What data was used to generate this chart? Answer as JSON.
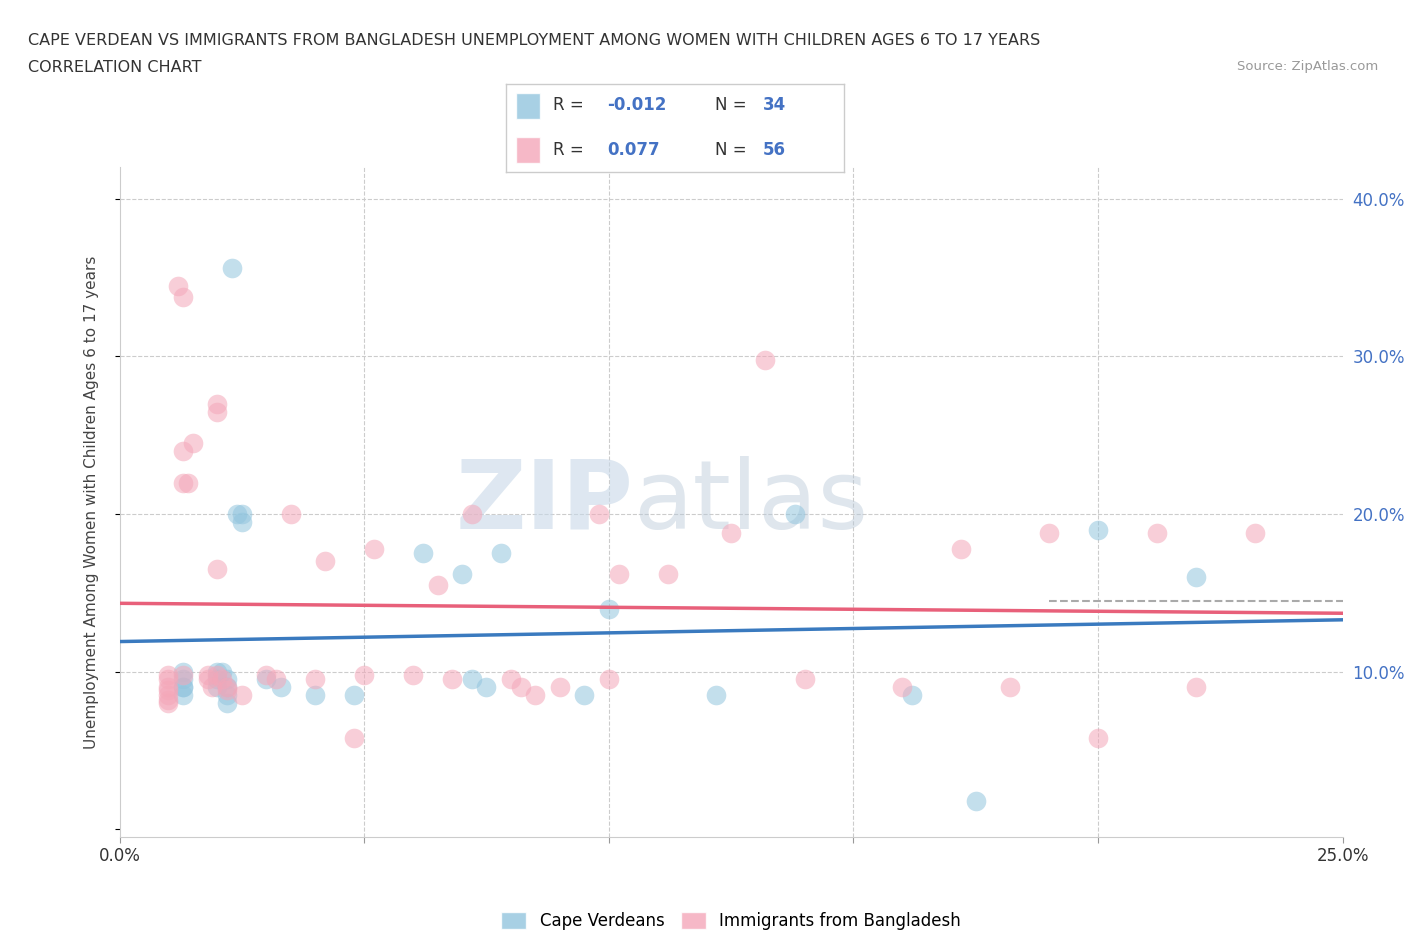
{
  "title_line1": "CAPE VERDEAN VS IMMIGRANTS FROM BANGLADESH UNEMPLOYMENT AMONG WOMEN WITH CHILDREN AGES 6 TO 17 YEARS",
  "title_line2": "CORRELATION CHART",
  "source_text": "Source: ZipAtlas.com",
  "ylabel": "Unemployment Among Women with Children Ages 6 to 17 years",
  "watermark_top": "ZIP",
  "watermark_bot": "atlas",
  "xlim": [
    0.0,
    0.25
  ],
  "ylim": [
    -0.005,
    0.42
  ],
  "blue_color": "#92c5de",
  "pink_color": "#f4a7b9",
  "blue_line_color": "#3a7abf",
  "pink_line_color": "#e8607a",
  "dashed_line_color": "#aaaaaa",
  "tick_color": "#4472c4",
  "grid_color": "#cccccc",
  "R_blue": "-0.012",
  "N_blue": "34",
  "R_pink": "0.077",
  "N_pink": "56",
  "legend_label_blue": "Cape Verdeans",
  "legend_label_pink": "Immigrants from Bangladesh",
  "blue_x": [
    0.013,
    0.013,
    0.013,
    0.013,
    0.013,
    0.02,
    0.02,
    0.02,
    0.021,
    0.022,
    0.022,
    0.022,
    0.022,
    0.023,
    0.024,
    0.025,
    0.025,
    0.03,
    0.033,
    0.04,
    0.048,
    0.062,
    0.07,
    0.072,
    0.075,
    0.078,
    0.095,
    0.1,
    0.122,
    0.138,
    0.162,
    0.175,
    0.2,
    0.22
  ],
  "blue_y": [
    0.1,
    0.095,
    0.09,
    0.09,
    0.085,
    0.1,
    0.095,
    0.09,
    0.1,
    0.095,
    0.09,
    0.085,
    0.08,
    0.356,
    0.2,
    0.2,
    0.195,
    0.095,
    0.09,
    0.085,
    0.085,
    0.175,
    0.162,
    0.095,
    0.09,
    0.175,
    0.085,
    0.14,
    0.085,
    0.2,
    0.085,
    0.018,
    0.19,
    0.16
  ],
  "pink_x": [
    0.01,
    0.01,
    0.01,
    0.01,
    0.01,
    0.01,
    0.01,
    0.012,
    0.013,
    0.013,
    0.013,
    0.013,
    0.014,
    0.015,
    0.018,
    0.018,
    0.019,
    0.02,
    0.02,
    0.02,
    0.02,
    0.021,
    0.022,
    0.022,
    0.025,
    0.03,
    0.032,
    0.035,
    0.04,
    0.042,
    0.048,
    0.05,
    0.052,
    0.06,
    0.065,
    0.068,
    0.072,
    0.08,
    0.082,
    0.085,
    0.09,
    0.098,
    0.1,
    0.102,
    0.112,
    0.125,
    0.132,
    0.14,
    0.16,
    0.172,
    0.182,
    0.19,
    0.2,
    0.212,
    0.22,
    0.232
  ],
  "pink_y": [
    0.098,
    0.095,
    0.09,
    0.088,
    0.085,
    0.082,
    0.08,
    0.345,
    0.338,
    0.24,
    0.22,
    0.098,
    0.22,
    0.245,
    0.098,
    0.095,
    0.09,
    0.165,
    0.27,
    0.265,
    0.098,
    0.095,
    0.09,
    0.088,
    0.085,
    0.098,
    0.095,
    0.2,
    0.095,
    0.17,
    0.058,
    0.098,
    0.178,
    0.098,
    0.155,
    0.095,
    0.2,
    0.095,
    0.09,
    0.085,
    0.09,
    0.2,
    0.095,
    0.162,
    0.162,
    0.188,
    0.298,
    0.095,
    0.09,
    0.178,
    0.09,
    0.188,
    0.058,
    0.188,
    0.09,
    0.188
  ],
  "background_color": "#ffffff"
}
